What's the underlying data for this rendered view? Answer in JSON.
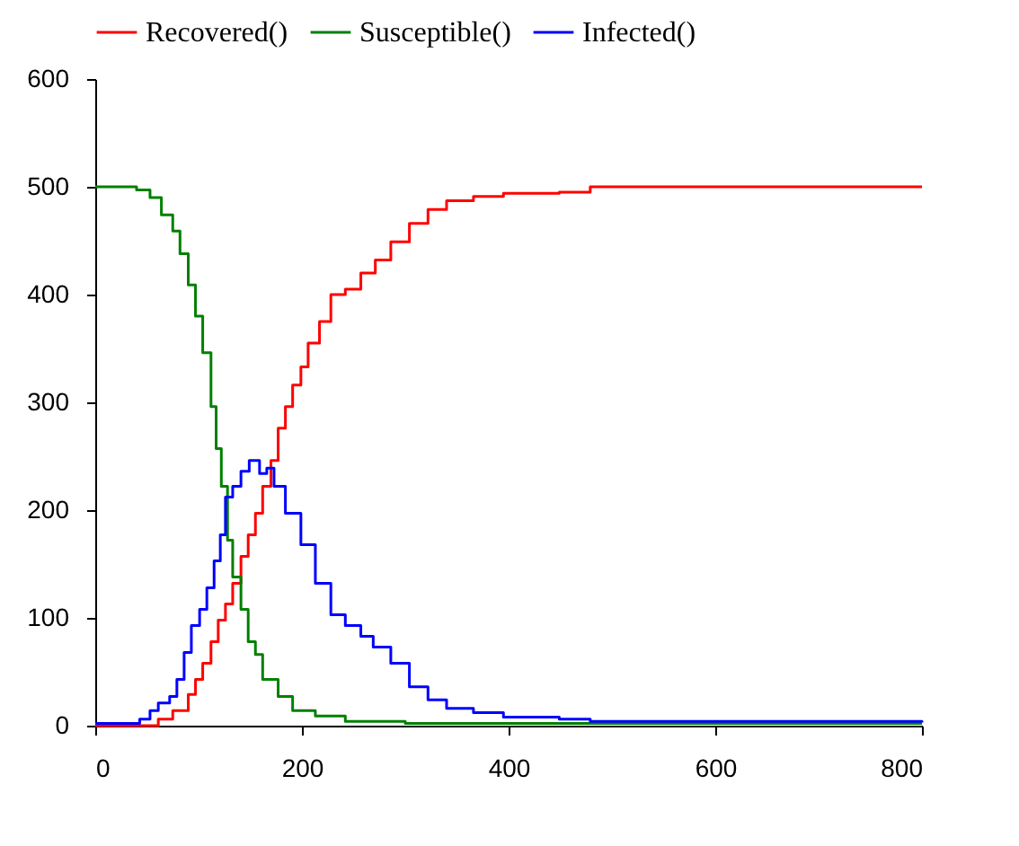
{
  "chart_data": {
    "type": "step",
    "legend": "top",
    "grid": false,
    "xlim": [
      0,
      800
    ],
    "xticks": [
      0,
      200,
      400,
      600,
      800
    ],
    "ylim": [
      0,
      600
    ],
    "yticks": [
      0,
      100,
      200,
      300,
      400,
      500,
      600
    ],
    "series": [
      {
        "name": "Recovered()",
        "color": "#ff0000",
        "x": [
          0,
          61,
          75,
          90,
          97,
          104,
          112,
          119,
          126,
          133,
          141,
          148,
          155,
          162,
          170,
          177,
          184,
          191,
          199,
          206,
          217,
          228,
          242,
          257,
          271,
          286,
          304,
          322,
          340,
          366,
          395,
          449,
          479,
          800
        ],
        "values": [
          0,
          6,
          14,
          29,
          43,
          58,
          78,
          98,
          113,
          132,
          157,
          177,
          197,
          222,
          246,
          276,
          296,
          316,
          333,
          355,
          375,
          400,
          405,
          420,
          432,
          449,
          466,
          479,
          487,
          491,
          494,
          495,
          500,
          500
        ]
      },
      {
        "name": "Susceptible()",
        "color": "#008000",
        "x": [
          0,
          24,
          40,
          53,
          64,
          75,
          82,
          90,
          97,
          104,
          112,
          117,
          122,
          128,
          133,
          141,
          148,
          155,
          162,
          177,
          191,
          213,
          242,
          300,
          800
        ],
        "values": [
          500,
          500,
          497,
          490,
          474,
          459,
          438,
          409,
          380,
          346,
          296,
          257,
          222,
          172,
          138,
          108,
          78,
          66,
          43,
          27,
          14,
          9,
          4,
          2,
          2
        ]
      },
      {
        "name": "Infected()",
        "color": "#0000ff",
        "x": [
          0,
          43,
          53,
          61,
          72,
          79,
          86,
          93,
          101,
          108,
          115,
          121,
          126,
          133,
          141,
          149,
          159,
          166,
          173,
          184,
          199,
          213,
          228,
          242,
          257,
          269,
          286,
          304,
          322,
          340,
          366,
          395,
          449,
          479,
          800
        ],
        "values": [
          2,
          6,
          14,
          21,
          27,
          43,
          68,
          93,
          108,
          128,
          153,
          177,
          212,
          222,
          236,
          246,
          234,
          239,
          222,
          197,
          168,
          132,
          103,
          93,
          83,
          73,
          58,
          36,
          24,
          16,
          12,
          8,
          6,
          4,
          3
        ]
      }
    ]
  }
}
